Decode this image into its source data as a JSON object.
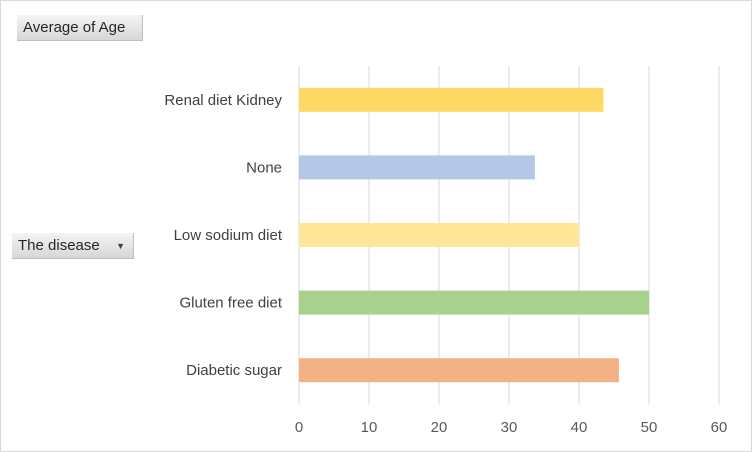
{
  "fields": {
    "value_field": "Average of Age",
    "axis_field": "The disease",
    "axis_field_icon": "dropdown-arrow-icon"
  },
  "chart_data": {
    "type": "bar",
    "orientation": "horizontal",
    "title": "",
    "xlabel": "",
    "ylabel": "",
    "categories": [
      "Renal diet Kidney",
      "None",
      "Low sodium diet",
      "Gluten free diet",
      "Diabetic sugar"
    ],
    "values": [
      43.5,
      33.7,
      40,
      50,
      45.7
    ],
    "colors": [
      "#ffd966",
      "#b4c7e7",
      "#ffe699",
      "#a9d18e",
      "#f4b183"
    ],
    "xlim": [
      0,
      60
    ],
    "xticks": [
      0,
      10,
      20,
      30,
      40,
      50,
      60
    ],
    "grid": "vertical",
    "legend": "none"
  }
}
